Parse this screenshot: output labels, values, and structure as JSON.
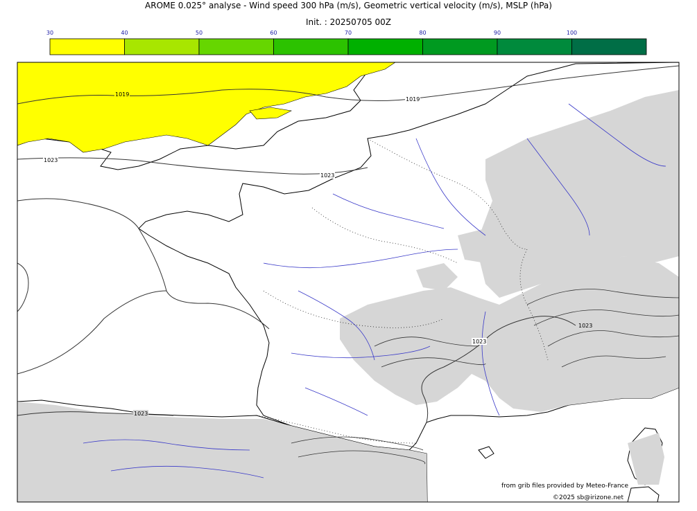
{
  "header": {
    "title": "AROME 0.025° analyse - Wind speed 300 hPa (m/s), Geometric vertical velocity (m/s), MSLP (hPa)",
    "init": "Init. : 20250705 00Z"
  },
  "colorbar": {
    "ticks": [
      "30",
      "40",
      "50",
      "60",
      "70",
      "80",
      "90",
      "100"
    ],
    "colors": [
      "#ffff00",
      "#a8e600",
      "#66d600",
      "#2cc200",
      "#00b000",
      "#009a20",
      "#008a3c",
      "#006e46"
    ],
    "tick_color": "#1a1aa6"
  },
  "map": {
    "isobar_labels": [
      "1019",
      "1019",
      "1023",
      "1023",
      "1023",
      "1023",
      "1023"
    ],
    "land_fill": "#ffffff",
    "relief_fill": "#d6d6d6",
    "jet_fill": "#ffff00",
    "river_color": "#3838c8",
    "coast_color": "#000000",
    "isobar_color": "#333333"
  },
  "credits": {
    "source": "from grib files provided by Meteo-France",
    "copyright": "©2025 sb@irizone.net"
  }
}
